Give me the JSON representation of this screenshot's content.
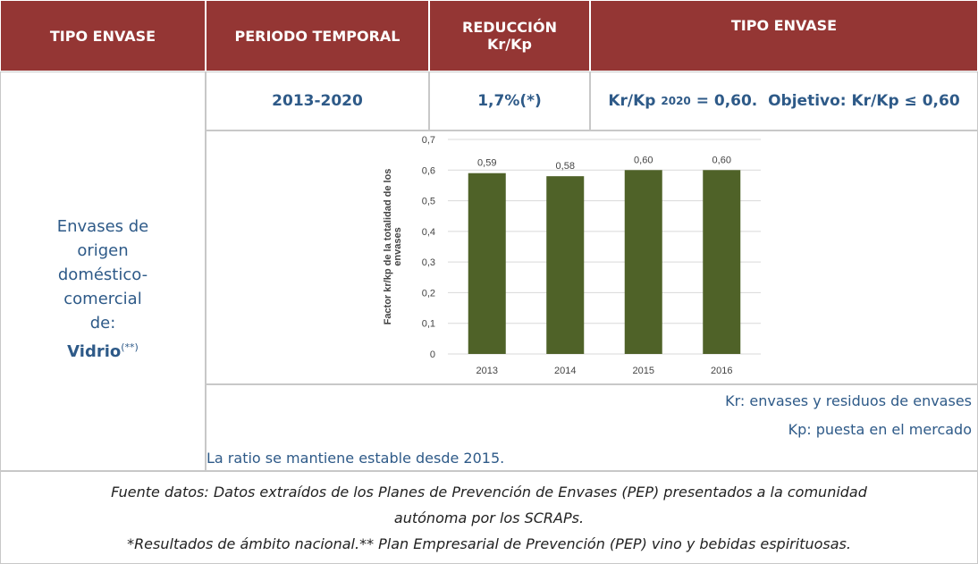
{
  "header": [
    "TIPO ENVASE",
    "PERIODO TEMPORAL",
    "REDUCCIÓN Kr/Kp",
    "TIPO ENVASE"
  ],
  "row": {
    "material_lines": [
      "Envases de",
      "origen",
      "doméstico-",
      "comercial",
      "de:"
    ],
    "material_bold": "Vidrio",
    "material_note": "(**)",
    "period": "2013-2020",
    "reduction": "1,7%(*)",
    "target_a": "Kr/Kp",
    "target_sub": "2020",
    "target_b": "= 0,60.  Objetivo: Kr/Kp ≤ 0,60"
  },
  "notes": {
    "kr": "Kr: envases y residuos de envases",
    "kp": "Kp: puesta en el mercado",
    "comment": "La ratio se mantiene estable desde 2015."
  },
  "footer": {
    "source": "Fuente datos: Datos extraídos de los Planes de Prevención de Envases (PEP) presentados a la comunidad autónoma por los SCRAPs.",
    "remark": "*Resultados de ámbito nacional.** Plan Empresarial de Prevención (PEP) vino y bebidas espirituosas."
  },
  "chart_data": {
    "type": "bar",
    "y_label": "Factor kr/kp de la totalidad de los envases",
    "categories": [
      "2013",
      "2014",
      "2015",
      "2016"
    ],
    "values": [
      0.59,
      0.58,
      0.6,
      0.6
    ],
    "value_labels": [
      "0,59",
      "0,58",
      "0,60",
      "0,60"
    ],
    "color": "#4f6228",
    "ylim": [
      0,
      0.7
    ],
    "yticks": [
      {
        "value": 0,
        "label": "0"
      },
      {
        "value": 0.1,
        "label": "0,1"
      },
      {
        "value": 0.2,
        "label": "0,2"
      },
      {
        "value": 0.3,
        "label": "0,3"
      },
      {
        "value": 0.4,
        "label": "0,4"
      },
      {
        "value": 0.5,
        "label": "0,5"
      },
      {
        "value": 0.6,
        "label": "0,6"
      },
      {
        "value": 0.7,
        "label": "0,7"
      }
    ],
    "grid": true
  }
}
